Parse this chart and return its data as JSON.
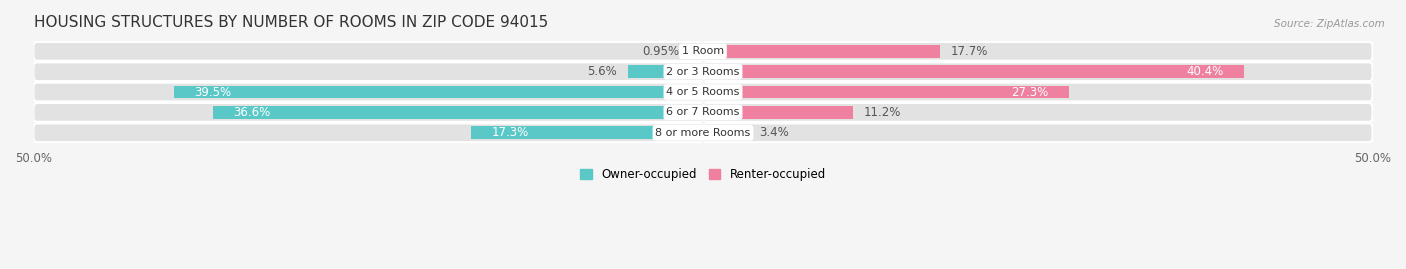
{
  "title": "HOUSING STRUCTURES BY NUMBER OF ROOMS IN ZIP CODE 94015",
  "source": "Source: ZipAtlas.com",
  "categories": [
    "1 Room",
    "2 or 3 Rooms",
    "4 or 5 Rooms",
    "6 or 7 Rooms",
    "8 or more Rooms"
  ],
  "owner_values": [
    0.95,
    5.6,
    39.5,
    36.6,
    17.3
  ],
  "renter_values": [
    17.7,
    40.4,
    27.3,
    11.2,
    3.4
  ],
  "owner_color": "#5BC8C8",
  "renter_color": "#F080A0",
  "owner_label": "Owner-occupied",
  "renter_label": "Renter-occupied",
  "xlim": [
    -50,
    50
  ],
  "xtick_labels": [
    "50.0%",
    "50.0%"
  ],
  "bar_height": 0.62,
  "background_color": "#f5f5f5",
  "bar_background_color": "#e2e2e2",
  "title_fontsize": 11,
  "label_fontsize": 8.5,
  "category_fontsize": 8
}
